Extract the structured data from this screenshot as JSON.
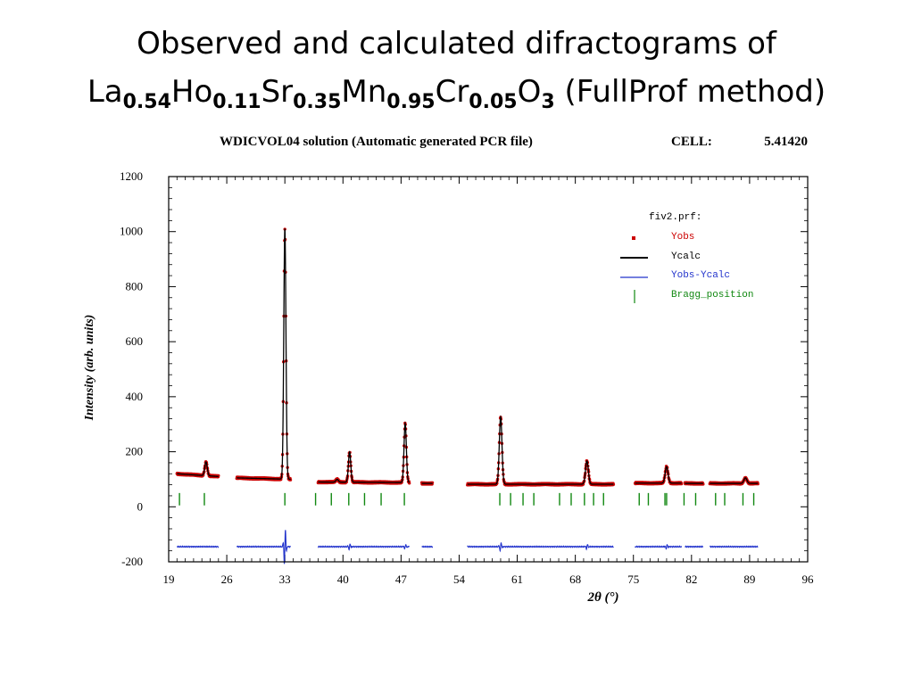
{
  "slide": {
    "title_line1": "Observed and calculated difractograms of",
    "formula": [
      {
        "el": "La",
        "sub": "0.54"
      },
      {
        "el": "Ho",
        "sub": "0.11"
      },
      {
        "el": "Sr",
        "sub": "0.35"
      },
      {
        "el": "Mn",
        "sub": "0.95"
      },
      {
        "el": "Cr",
        "sub": "0.05"
      },
      {
        "el": "O",
        "sub": "3"
      }
    ],
    "title_suffix": "(FullProf method)"
  },
  "chart_data": {
    "type": "line",
    "title": "WDICVOL04 solution (Automatic generated PCR file)",
    "cell_label": "CELL:",
    "cell_value": "5.41420",
    "xlabel": "2θ (°)",
    "ylabel": "Intensity (arb. units)",
    "xlim": [
      19,
      96
    ],
    "ylim": [
      -200,
      1200
    ],
    "xticks": [
      19,
      26,
      33,
      40,
      47,
      54,
      61,
      68,
      75,
      82,
      89,
      96
    ],
    "yticks": [
      -200,
      0,
      200,
      400,
      600,
      800,
      1000,
      1200
    ],
    "legend": {
      "file": "fiv2.prf:",
      "position": "top-right",
      "entries": [
        {
          "name": "Yobs",
          "color": "#cc0000",
          "marker": "dot"
        },
        {
          "name": "Ycalc",
          "color": "#000000",
          "marker": "line"
        },
        {
          "name": "Yobs-Ycalc",
          "color": "#2233cc",
          "marker": "line"
        },
        {
          "name": "Bragg_position",
          "color": "#118811",
          "marker": "tick"
        }
      ]
    },
    "segments": [
      [
        20,
        25
      ],
      [
        27.2,
        33.7
      ],
      [
        37,
        48
      ],
      [
        49.5,
        50.8
      ],
      [
        55,
        69.6
      ],
      [
        69.6,
        72.6
      ],
      [
        75.2,
        80.8
      ],
      [
        81.2,
        83.4
      ],
      [
        84.2,
        90
      ]
    ],
    "background": [
      {
        "x": 20,
        "y": 120
      },
      {
        "x": 25,
        "y": 110
      },
      {
        "x": 27.2,
        "y": 105
      },
      {
        "x": 33.7,
        "y": 100
      },
      {
        "x": 37,
        "y": 90
      },
      {
        "x": 48,
        "y": 88
      },
      {
        "x": 49.5,
        "y": 85
      },
      {
        "x": 50.8,
        "y": 85
      },
      {
        "x": 55,
        "y": 82
      },
      {
        "x": 69.6,
        "y": 82
      },
      {
        "x": 72.6,
        "y": 82
      },
      {
        "x": 75.2,
        "y": 86
      },
      {
        "x": 80.8,
        "y": 86
      },
      {
        "x": 81.2,
        "y": 85
      },
      {
        "x": 83.4,
        "y": 85
      },
      {
        "x": 84.2,
        "y": 85
      },
      {
        "x": 90,
        "y": 85
      }
    ],
    "peaks": [
      {
        "x": 23.5,
        "height": 50,
        "width": 0.15
      },
      {
        "x": 33.0,
        "height": 910,
        "width": 0.13
      },
      {
        "x": 39.3,
        "height": 10,
        "width": 0.15
      },
      {
        "x": 40.8,
        "height": 110,
        "width": 0.14
      },
      {
        "x": 47.5,
        "height": 215,
        "width": 0.14
      },
      {
        "x": 59.0,
        "height": 245,
        "width": 0.16
      },
      {
        "x": 69.4,
        "height": 85,
        "width": 0.17
      },
      {
        "x": 79.0,
        "height": 60,
        "width": 0.17
      },
      {
        "x": 88.5,
        "height": 20,
        "width": 0.18
      }
    ],
    "difference": {
      "baseline": -145,
      "features": [
        {
          "x": 33.0,
          "amplitude": 75
        },
        {
          "x": 40.8,
          "amplitude": 12
        },
        {
          "x": 47.5,
          "amplitude": 10
        },
        {
          "x": 59.0,
          "amplitude": 18
        },
        {
          "x": 69.4,
          "amplitude": 10
        },
        {
          "x": 79.0,
          "amplitude": 8
        }
      ]
    },
    "bragg_positions": [
      20.3,
      23.3,
      33.0,
      36.7,
      38.6,
      40.7,
      42.6,
      44.6,
      47.4,
      58.9,
      60.2,
      61.7,
      63.0,
      66.1,
      67.5,
      69.1,
      70.2,
      71.4,
      75.7,
      76.8,
      78.8,
      79.0,
      81.1,
      82.5,
      84.9,
      86.0,
      88.2,
      89.5
    ]
  }
}
